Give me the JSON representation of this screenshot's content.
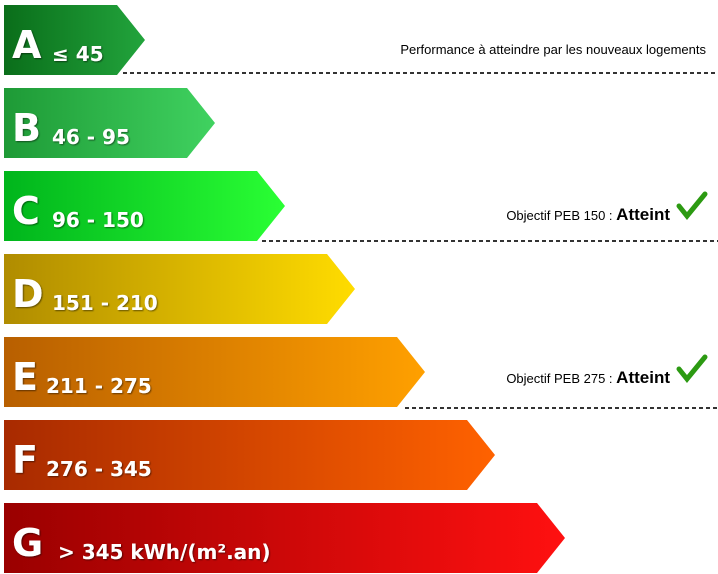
{
  "bands": [
    {
      "letter": "A",
      "range": "≤ 45"
    },
    {
      "letter": "B",
      "range": "46 - 95"
    },
    {
      "letter": "C",
      "range": "96 - 150"
    },
    {
      "letter": "D",
      "range": "151 - 210"
    },
    {
      "letter": "E",
      "range": "211 - 275"
    },
    {
      "letter": "F",
      "range": "276 - 345"
    },
    {
      "letter": "G",
      "range": "> 345  kWh/(m².an)"
    }
  ],
  "annotations": {
    "performance": "Performance à atteindre par les nouveaux logements",
    "objectives": [
      {
        "label": "Objectif PEB 150 :",
        "status": "Atteint"
      },
      {
        "label": "Objectif PEB 275 :",
        "status": "Atteint"
      }
    ]
  }
}
